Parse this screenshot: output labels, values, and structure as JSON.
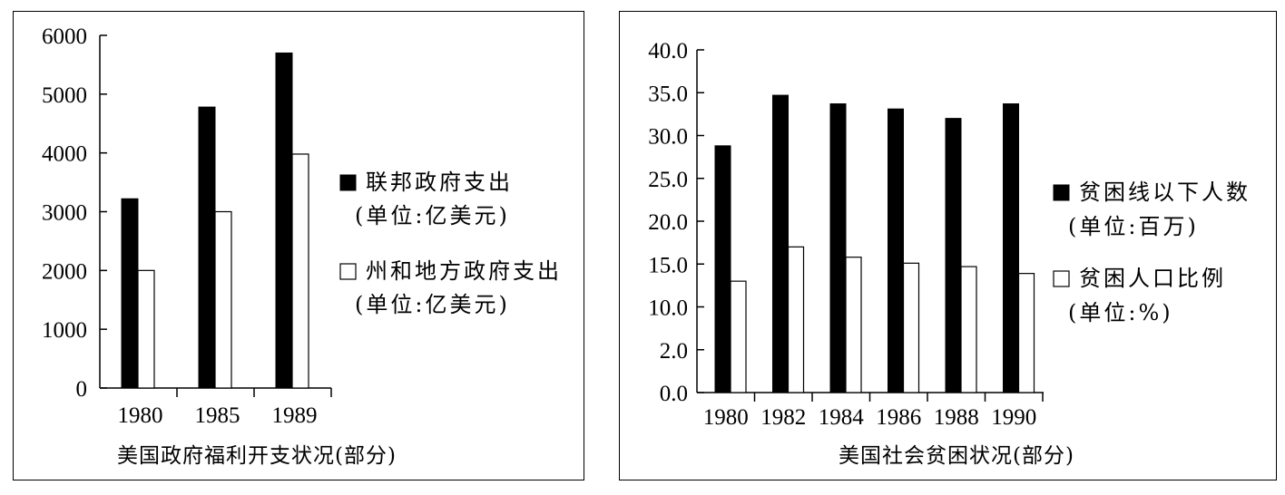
{
  "chart_data": [
    {
      "type": "bar",
      "caption": "美国政府福利开支状况(部分)",
      "categories": [
        "1980",
        "1985",
        "1989"
      ],
      "yticks": [
        "0",
        "1000",
        "2000",
        "3000",
        "4000",
        "5000",
        "6000"
      ],
      "ylim": [
        0,
        6000
      ],
      "grid": false,
      "legend_position": "right",
      "series": [
        {
          "name": "联邦政府支出",
          "unit": "(单位:亿美元)",
          "color": "#000000",
          "values": [
            3220,
            4780,
            5700
          ]
        },
        {
          "name": "州和地方政府支出",
          "unit": "(单位:亿美元)",
          "color": "#ffffff",
          "values": [
            2000,
            3000,
            3980
          ]
        }
      ]
    },
    {
      "type": "bar",
      "caption": "美国社会贫困状况(部分)",
      "categories": [
        "1980",
        "1982",
        "1984",
        "1986",
        "1988",
        "1990"
      ],
      "yticks": [
        "0.0",
        "2.0",
        "10.0",
        "15.0",
        "20.0",
        "25.0",
        "30.0",
        "35.0",
        "40.0"
      ],
      "ylim": [
        0,
        40
      ],
      "grid": false,
      "legend_position": "right",
      "series": [
        {
          "name": "贫困线以下人数",
          "unit": "(单位:百万)",
          "color": "#000000",
          "values": [
            28.8,
            34.7,
            33.7,
            33.1,
            32.0,
            33.7
          ]
        },
        {
          "name": "贫困人口比例",
          "unit": "(单位:%)",
          "color": "#ffffff",
          "values": [
            13.0,
            17.0,
            15.8,
            15.1,
            14.7,
            13.9
          ]
        }
      ]
    }
  ]
}
